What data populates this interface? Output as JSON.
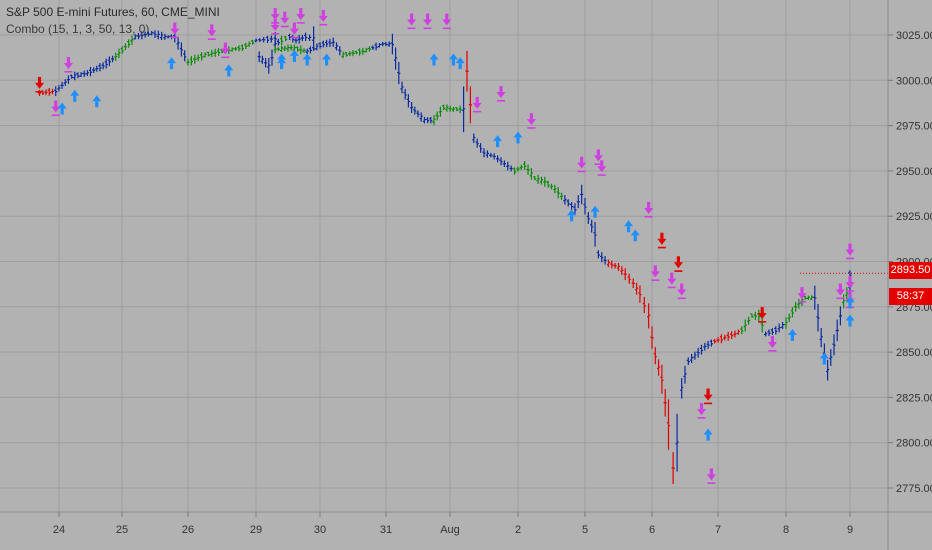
{
  "header": {
    "title": "S&P 500 E-mini Futures, 60, CME_MINI",
    "indicator": "Combo (15, 1, 3, 50, 13, 0)"
  },
  "badges": {
    "last_price": "2893.50",
    "countdown": "58:37"
  },
  "colors": {
    "background": "#b2b2b2",
    "grid": "#9e9e9e",
    "bar_up": "#0a8a0a",
    "bar_down": "#e00000",
    "bar_neutral": "#0a2aa0",
    "buy_arrow": "#1f8fff",
    "sell_arrow": "#d040e0",
    "sell_arrow_red": "#e00000",
    "badge": "#e50000"
  },
  "chart_data": {
    "type": "ohlc",
    "title": "S&P 500 E-mini Futures, 60, CME_MINI",
    "x_tick_labels": [
      "24",
      "25",
      "26",
      "29",
      "30",
      "31",
      "Aug",
      "2",
      "5",
      "6",
      "7",
      "8",
      "9"
    ],
    "y_tick_labels": [
      "3025.00",
      "3000.00",
      "2975.00",
      "2950.00",
      "2925.00",
      "2900.00",
      "2875.00",
      "2850.00",
      "2825.00",
      "2800.00",
      "2775.00"
    ],
    "ylim": [
      2767,
      3041
    ],
    "last_price": 2893.5,
    "grid": true,
    "path": [
      {
        "day": 23.7,
        "price": 2993,
        "color": "red"
      },
      {
        "day": 23.95,
        "price": 2994,
        "color": "blue"
      },
      {
        "day": 24.2,
        "price": 3002,
        "color": "blue"
      },
      {
        "day": 24.45,
        "price": 3004,
        "color": "blue"
      },
      {
        "day": 24.7,
        "price": 3008,
        "color": "blue"
      },
      {
        "day": 24.9,
        "price": 3013,
        "color": "green"
      },
      {
        "day": 25.2,
        "price": 3024,
        "color": "blue"
      },
      {
        "day": 25.45,
        "price": 3026,
        "color": "blue"
      },
      {
        "day": 25.65,
        "price": 3024,
        "color": "blue"
      },
      {
        "day": 25.8,
        "price": 3024,
        "color": "blue"
      },
      {
        "day": 26.0,
        "price": 3010,
        "color": "green"
      },
      {
        "day": 26.25,
        "price": 3014,
        "color": "green"
      },
      {
        "day": 26.5,
        "price": 3016,
        "color": "green"
      },
      {
        "day": 26.8,
        "price": 3018,
        "color": "green"
      },
      {
        "day": 27.0,
        "price": 3022,
        "color": "blue"
      },
      {
        "day": 27.3,
        "price": 3023,
        "color": "blue"
      },
      {
        "day": 27.6,
        "price": 3020,
        "color": "blue"
      },
      {
        "day": 27.8,
        "price": 3022,
        "color": "green"
      },
      {
        "day": 28.05,
        "price": 3024,
        "color": "blue"
      },
      {
        "day": 28.25,
        "price": 3022,
        "color": "blue"
      },
      {
        "day": 28.55,
        "price": 3024,
        "color": "blue"
      },
      {
        "day": 28.8,
        "price": 3023,
        "color": "blue"
      },
      {
        "day": 29.05,
        "price": 3013,
        "color": "blue"
      },
      {
        "day": 29.2,
        "price": 3008,
        "color": "blue"
      },
      {
        "day": 29.3,
        "price": 3017,
        "color": "green"
      },
      {
        "day": 29.55,
        "price": 3018,
        "color": "green"
      },
      {
        "day": 29.8,
        "price": 3016,
        "color": "blue"
      },
      {
        "day": 30.05,
        "price": 3020,
        "color": "blue"
      },
      {
        "day": 30.2,
        "price": 3021,
        "color": "blue"
      },
      {
        "day": 30.35,
        "price": 3014,
        "color": "green"
      },
      {
        "day": 30.65,
        "price": 3016,
        "color": "green"
      },
      {
        "day": 30.8,
        "price": 3018,
        "color": "blue"
      },
      {
        "day": 30.95,
        "price": 3020,
        "color": "blue"
      },
      {
        "day": 31.1,
        "price": 3020,
        "color": "blue"
      },
      {
        "day": 31.25,
        "price": 2996,
        "color": "blue"
      },
      {
        "day": 31.4,
        "price": 2985,
        "color": "blue"
      },
      {
        "day": 31.6,
        "price": 2978,
        "color": "blue"
      },
      {
        "day": 31.75,
        "price": 2978,
        "color": "green"
      },
      {
        "day": 31.9,
        "price": 2985,
        "color": "green"
      },
      {
        "day": 32.05,
        "price": 2984,
        "color": "green"
      },
      {
        "day": 32.2,
        "price": 2984,
        "color": "blue"
      },
      {
        "day": 32.25,
        "price": 3005,
        "color": "red"
      },
      {
        "day": 32.35,
        "price": 2968,
        "color": "blue"
      },
      {
        "day": 32.5,
        "price": 2960,
        "color": "blue"
      },
      {
        "day": 32.65,
        "price": 2958,
        "color": "blue"
      },
      {
        "day": 32.8,
        "price": 2954,
        "color": "blue"
      },
      {
        "day": 32.95,
        "price": 2950,
        "color": "green"
      },
      {
        "day": 33.1,
        "price": 2953,
        "color": "green"
      },
      {
        "day": 33.25,
        "price": 2946,
        "color": "green"
      },
      {
        "day": 33.4,
        "price": 2944,
        "color": "green"
      },
      {
        "day": 33.55,
        "price": 2940,
        "color": "green"
      },
      {
        "day": 33.7,
        "price": 2934,
        "color": "blue"
      },
      {
        "day": 33.85,
        "price": 2929,
        "color": "blue"
      },
      {
        "day": 33.95,
        "price": 2937,
        "color": "blue"
      },
      {
        "day": 34.05,
        "price": 2924,
        "color": "blue"
      },
      {
        "day": 34.15,
        "price": 2915,
        "color": "blue"
      },
      {
        "day": 34.2,
        "price": 2904,
        "color": "blue"
      },
      {
        "day": 34.35,
        "price": 2899,
        "color": "red"
      },
      {
        "day": 34.5,
        "price": 2897,
        "color": "red"
      },
      {
        "day": 34.6,
        "price": 2893,
        "color": "red"
      },
      {
        "day": 34.72,
        "price": 2888,
        "color": "red"
      },
      {
        "day": 34.82,
        "price": 2882,
        "color": "red"
      },
      {
        "day": 34.95,
        "price": 2870,
        "color": "red"
      },
      {
        "day": 35.0,
        "price": 2858,
        "color": "red"
      },
      {
        "day": 35.05,
        "price": 2848,
        "color": "red"
      },
      {
        "day": 35.15,
        "price": 2835,
        "color": "red"
      },
      {
        "day": 35.2,
        "price": 2822,
        "color": "red"
      },
      {
        "day": 35.25,
        "price": 2810,
        "color": "red"
      },
      {
        "day": 35.32,
        "price": 2786,
        "color": "red"
      },
      {
        "day": 35.38,
        "price": 2800,
        "color": "blue"
      },
      {
        "day": 35.45,
        "price": 2830,
        "color": "blue"
      },
      {
        "day": 35.55,
        "price": 2845,
        "color": "blue"
      },
      {
        "day": 35.65,
        "price": 2848,
        "color": "blue"
      },
      {
        "day": 35.8,
        "price": 2853,
        "color": "blue"
      },
      {
        "day": 35.95,
        "price": 2856,
        "color": "red"
      },
      {
        "day": 36.1,
        "price": 2858,
        "color": "red"
      },
      {
        "day": 36.25,
        "price": 2860,
        "color": "red"
      },
      {
        "day": 36.35,
        "price": 2862,
        "color": "green"
      },
      {
        "day": 36.5,
        "price": 2870,
        "color": "green"
      },
      {
        "day": 36.6,
        "price": 2870,
        "color": "green"
      },
      {
        "day": 36.7,
        "price": 2860,
        "color": "blue"
      },
      {
        "day": 36.85,
        "price": 2862,
        "color": "blue"
      },
      {
        "day": 37.0,
        "price": 2866,
        "color": "green"
      },
      {
        "day": 37.15,
        "price": 2875,
        "color": "green"
      },
      {
        "day": 37.3,
        "price": 2880,
        "color": "green"
      },
      {
        "day": 37.45,
        "price": 2880,
        "color": "blue"
      },
      {
        "day": 37.55,
        "price": 2858,
        "color": "blue"
      },
      {
        "day": 37.65,
        "price": 2840,
        "color": "blue"
      },
      {
        "day": 37.75,
        "price": 2854,
        "color": "blue"
      },
      {
        "day": 37.9,
        "price": 2878,
        "color": "green"
      },
      {
        "day": 38.05,
        "price": 2886,
        "color": "blue"
      },
      {
        "day": 38.15,
        "price": 2893,
        "color": "blue"
      },
      {
        "day": 38.25,
        "price": 2893.5,
        "color": "blue"
      }
    ],
    "signals": [
      {
        "day": 23.7,
        "price": 2998,
        "kind": "sell",
        "color": "red"
      },
      {
        "day": 23.95,
        "price": 2985,
        "kind": "sell",
        "color": "magenta"
      },
      {
        "day": 24.05,
        "price": 2985,
        "kind": "buy",
        "color": "blue"
      },
      {
        "day": 24.15,
        "price": 3009,
        "kind": "sell",
        "color": "magenta"
      },
      {
        "day": 24.25,
        "price": 2992,
        "kind": "buy",
        "color": "blue"
      },
      {
        "day": 24.6,
        "price": 2989,
        "kind": "buy",
        "color": "blue"
      },
      {
        "day": 25.8,
        "price": 3028,
        "kind": "sell",
        "color": "magenta"
      },
      {
        "day": 25.75,
        "price": 3010,
        "kind": "buy",
        "color": "blue"
      },
      {
        "day": 26.35,
        "price": 3027,
        "kind": "sell",
        "color": "magenta"
      },
      {
        "day": 26.55,
        "price": 3017,
        "kind": "sell",
        "color": "magenta"
      },
      {
        "day": 26.6,
        "price": 3006,
        "kind": "buy",
        "color": "blue"
      },
      {
        "day": 27.3,
        "price": 3030,
        "kind": "sell",
        "color": "magenta"
      },
      {
        "day": 27.4,
        "price": 3010,
        "kind": "buy",
        "color": "blue"
      },
      {
        "day": 27.8,
        "price": 3012,
        "kind": "buy",
        "color": "blue"
      },
      {
        "day": 28.2,
        "price": 3028,
        "kind": "sell",
        "color": "magenta"
      },
      {
        "day": 29.3,
        "price": 3036,
        "kind": "sell",
        "color": "magenta"
      },
      {
        "day": 29.45,
        "price": 3034,
        "kind": "sell",
        "color": "magenta"
      },
      {
        "day": 29.7,
        "price": 3036,
        "kind": "sell",
        "color": "magenta"
      },
      {
        "day": 30.05,
        "price": 3035,
        "kind": "sell",
        "color": "magenta"
      },
      {
        "day": 29.6,
        "price": 3014,
        "kind": "buy",
        "color": "blue"
      },
      {
        "day": 29.8,
        "price": 3012,
        "kind": "buy",
        "color": "blue"
      },
      {
        "day": 30.1,
        "price": 3012,
        "kind": "buy",
        "color": "blue"
      },
      {
        "day": 31.4,
        "price": 3033,
        "kind": "sell",
        "color": "magenta"
      },
      {
        "day": 31.65,
        "price": 3033,
        "kind": "sell",
        "color": "magenta"
      },
      {
        "day": 31.95,
        "price": 3033,
        "kind": "sell",
        "color": "magenta"
      },
      {
        "day": 31.75,
        "price": 3012,
        "kind": "buy",
        "color": "blue"
      },
      {
        "day": 32.05,
        "price": 3012,
        "kind": "buy",
        "color": "blue"
      },
      {
        "day": 32.15,
        "price": 3010,
        "kind": "buy",
        "color": "blue"
      },
      {
        "day": 32.4,
        "price": 2987,
        "kind": "sell",
        "color": "magenta"
      },
      {
        "day": 32.75,
        "price": 2993,
        "kind": "sell",
        "color": "magenta"
      },
      {
        "day": 32.7,
        "price": 2967,
        "kind": "buy",
        "color": "blue"
      },
      {
        "day": 33.0,
        "price": 2969,
        "kind": "buy",
        "color": "blue"
      },
      {
        "day": 33.2,
        "price": 2978,
        "kind": "sell",
        "color": "magenta"
      },
      {
        "day": 33.95,
        "price": 2954,
        "kind": "sell",
        "color": "magenta"
      },
      {
        "day": 34.2,
        "price": 2958,
        "kind": "sell",
        "color": "magenta"
      },
      {
        "day": 34.25,
        "price": 2952,
        "kind": "sell",
        "color": "magenta"
      },
      {
        "day": 33.8,
        "price": 2926,
        "kind": "buy",
        "color": "blue"
      },
      {
        "day": 34.15,
        "price": 2928,
        "kind": "buy",
        "color": "blue"
      },
      {
        "day": 34.65,
        "price": 2920,
        "kind": "buy",
        "color": "blue"
      },
      {
        "day": 34.95,
        "price": 2929,
        "kind": "sell",
        "color": "magenta"
      },
      {
        "day": 35.15,
        "price": 2912,
        "kind": "sell",
        "color": "red"
      },
      {
        "day": 34.75,
        "price": 2915,
        "kind": "buy",
        "color": "blue"
      },
      {
        "day": 35.05,
        "price": 2894,
        "kind": "sell",
        "color": "magenta"
      },
      {
        "day": 35.3,
        "price": 2890,
        "kind": "sell",
        "color": "magenta"
      },
      {
        "day": 35.4,
        "price": 2899,
        "kind": "sell",
        "color": "red"
      },
      {
        "day": 35.45,
        "price": 2884,
        "kind": "sell",
        "color": "magenta"
      },
      {
        "day": 35.85,
        "price": 2826,
        "kind": "sell",
        "color": "red"
      },
      {
        "day": 35.75,
        "price": 2818,
        "kind": "sell",
        "color": "magenta"
      },
      {
        "day": 35.9,
        "price": 2782,
        "kind": "sell",
        "color": "magenta"
      },
      {
        "day": 35.85,
        "price": 2805,
        "kind": "buy",
        "color": "blue"
      },
      {
        "day": 36.65,
        "price": 2871,
        "kind": "sell",
        "color": "red"
      },
      {
        "day": 36.8,
        "price": 2855,
        "kind": "sell",
        "color": "magenta"
      },
      {
        "day": 37.1,
        "price": 2860,
        "kind": "buy",
        "color": "blue"
      },
      {
        "day": 37.25,
        "price": 2882,
        "kind": "sell",
        "color": "magenta"
      },
      {
        "day": 37.6,
        "price": 2847,
        "kind": "buy",
        "color": "blue"
      },
      {
        "day": 37.85,
        "price": 2884,
        "kind": "sell",
        "color": "magenta"
      },
      {
        "day": 38.1,
        "price": 2879,
        "kind": "sell",
        "color": "magenta"
      },
      {
        "day": 38.05,
        "price": 2868,
        "kind": "buy",
        "color": "blue"
      },
      {
        "day": 38.3,
        "price": 2888,
        "kind": "sell",
        "color": "magenta"
      },
      {
        "day": 38.4,
        "price": 2878,
        "kind": "buy",
        "color": "blue"
      },
      {
        "day": 38.45,
        "price": 2906,
        "kind": "sell",
        "color": "magenta"
      }
    ]
  }
}
